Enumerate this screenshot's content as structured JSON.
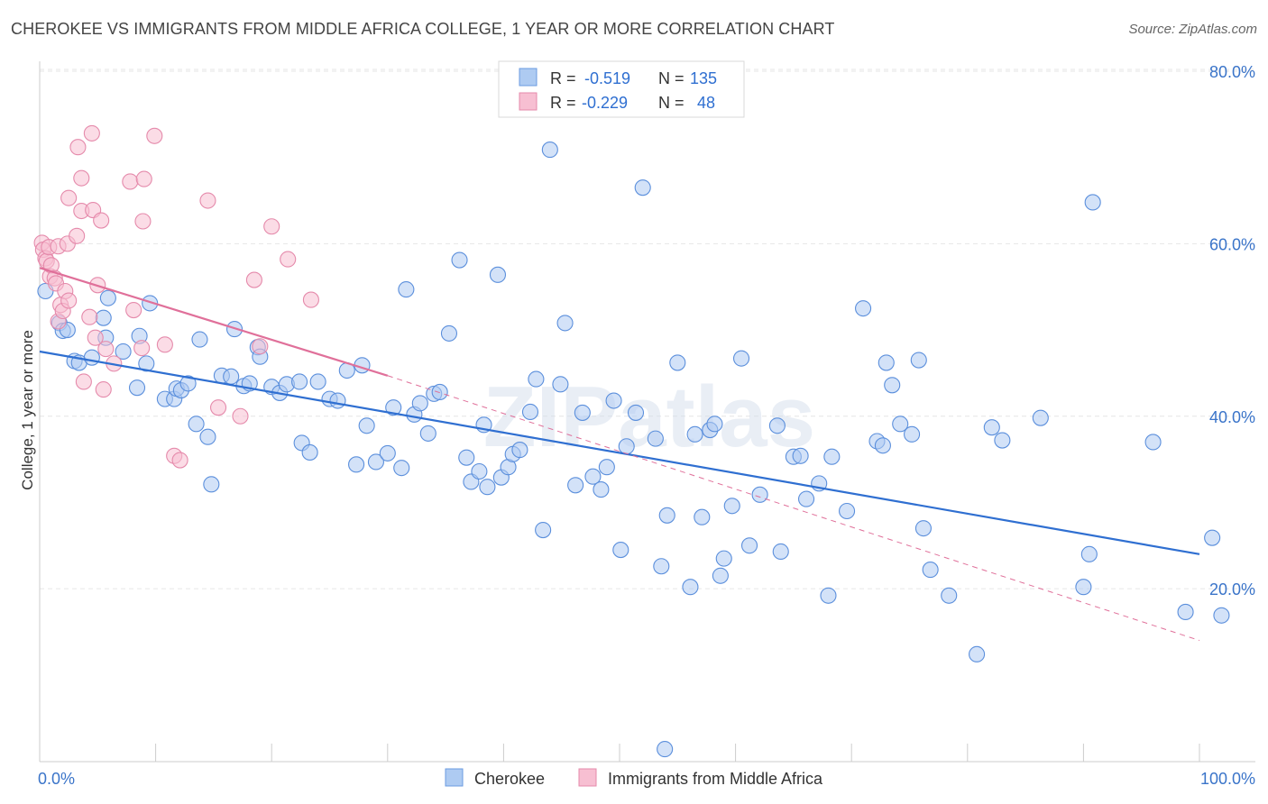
{
  "header": {
    "title": "CHEROKEE VS IMMIGRANTS FROM MIDDLE AFRICA COLLEGE, 1 YEAR OR MORE CORRELATION CHART",
    "source": "Source: ZipAtlas.com"
  },
  "watermark": "ZIPatlas",
  "colors": {
    "blue": "#2f6fd1",
    "blue_fill": "#aecbf2",
    "pink": "#e0709a",
    "pink_fill": "#f7bfd2",
    "axis_text": "#3a74c9",
    "grid": "#e6e6e6"
  },
  "legend_top": [
    {
      "r_label": "R =",
      "r_value": "-0.519",
      "n_label": "N =",
      "n_value": "135"
    },
    {
      "r_label": "R =",
      "r_value": "-0.229",
      "n_label": "N =",
      "n_value": "48"
    }
  ],
  "chart_data": {
    "type": "scatter",
    "title": "CHEROKEE VS IMMIGRANTS FROM MIDDLE AFRICA COLLEGE, 1 YEAR OR MORE CORRELATION CHART",
    "xlabel": "",
    "ylabel": "College, 1 year or more",
    "xlim": [
      0,
      100
    ],
    "ylim": [
      0,
      85
    ],
    "x_tick_labels": [
      "0.0%",
      "100.0%"
    ],
    "y_ticks": [
      20,
      40,
      60,
      80
    ],
    "y_tick_labels": [
      "20.0%",
      "40.0%",
      "60.0%",
      "80.0%"
    ],
    "grid": true,
    "legend_position": "bottom-center",
    "series": [
      {
        "name": "Cherokee",
        "color": "#2f6fd1",
        "trend": {
          "x": [
            0,
            100
          ],
          "y": [
            47.5,
            24
          ]
        },
        "points": [
          [
            0.5,
            54.5
          ],
          [
            1.7,
            50.8
          ],
          [
            2.0,
            49.9
          ],
          [
            2.4,
            50.0
          ],
          [
            3.0,
            46.4
          ],
          [
            3.4,
            46.2
          ],
          [
            4.5,
            46.8
          ],
          [
            5.7,
            49.1
          ],
          [
            5.5,
            51.4
          ],
          [
            5.9,
            53.7
          ],
          [
            7.2,
            47.5
          ],
          [
            8.6,
            49.3
          ],
          [
            8.4,
            43.3
          ],
          [
            9.2,
            46.1
          ],
          [
            9.5,
            53.1
          ],
          [
            10.8,
            42.0
          ],
          [
            11.6,
            42.0
          ],
          [
            11.8,
            43.2
          ],
          [
            12.2,
            43.0
          ],
          [
            12.8,
            43.8
          ],
          [
            13.8,
            48.9
          ],
          [
            13.5,
            39.1
          ],
          [
            14.5,
            37.6
          ],
          [
            14.8,
            32.1
          ],
          [
            15.7,
            44.7
          ],
          [
            16.5,
            44.6
          ],
          [
            16.8,
            50.1
          ],
          [
            17.6,
            43.5
          ],
          [
            18.1,
            43.8
          ],
          [
            18.8,
            48.0
          ],
          [
            19.0,
            46.9
          ],
          [
            20.0,
            43.4
          ],
          [
            20.7,
            42.7
          ],
          [
            21.3,
            43.7
          ],
          [
            22.4,
            44.0
          ],
          [
            22.6,
            36.9
          ],
          [
            23.3,
            35.8
          ],
          [
            24.0,
            44.0
          ],
          [
            25.0,
            42.0
          ],
          [
            25.7,
            41.8
          ],
          [
            26.5,
            45.3
          ],
          [
            27.3,
            34.4
          ],
          [
            27.8,
            45.9
          ],
          [
            28.2,
            38.9
          ],
          [
            29.0,
            34.7
          ],
          [
            30.0,
            35.7
          ],
          [
            30.5,
            41.0
          ],
          [
            31.2,
            34.0
          ],
          [
            31.6,
            54.7
          ],
          [
            32.3,
            40.2
          ],
          [
            32.8,
            41.5
          ],
          [
            33.5,
            38.0
          ],
          [
            34.0,
            42.6
          ],
          [
            34.5,
            42.8
          ],
          [
            35.3,
            49.6
          ],
          [
            36.2,
            58.1
          ],
          [
            36.8,
            35.2
          ],
          [
            37.2,
            32.4
          ],
          [
            37.9,
            33.6
          ],
          [
            38.3,
            39.0
          ],
          [
            38.6,
            31.8
          ],
          [
            39.5,
            56.4
          ],
          [
            39.8,
            32.9
          ],
          [
            40.4,
            34.1
          ],
          [
            40.8,
            35.6
          ],
          [
            41.4,
            36.1
          ],
          [
            42.3,
            40.5
          ],
          [
            42.8,
            44.3
          ],
          [
            43.4,
            26.8
          ],
          [
            44.0,
            70.9
          ],
          [
            44.9,
            43.7
          ],
          [
            45.3,
            50.8
          ],
          [
            46.2,
            32.0
          ],
          [
            46.8,
            40.4
          ],
          [
            47.7,
            33.0
          ],
          [
            48.4,
            31.5
          ],
          [
            48.9,
            34.1
          ],
          [
            49.5,
            41.8
          ],
          [
            50.1,
            24.5
          ],
          [
            50.6,
            36.5
          ],
          [
            51.4,
            40.4
          ],
          [
            52.0,
            66.5
          ],
          [
            53.1,
            37.4
          ],
          [
            53.6,
            22.6
          ],
          [
            54.1,
            28.5
          ],
          [
            55.0,
            46.2
          ],
          [
            56.1,
            20.2
          ],
          [
            56.5,
            37.9
          ],
          [
            57.1,
            28.3
          ],
          [
            57.8,
            38.4
          ],
          [
            58.2,
            39.1
          ],
          [
            58.7,
            21.5
          ],
          [
            59.0,
            23.5
          ],
          [
            59.7,
            29.6
          ],
          [
            60.5,
            46.7
          ],
          [
            61.2,
            25.0
          ],
          [
            62.1,
            30.9
          ],
          [
            63.6,
            38.9
          ],
          [
            63.9,
            24.3
          ],
          [
            65.0,
            35.3
          ],
          [
            65.6,
            35.4
          ],
          [
            66.1,
            30.4
          ],
          [
            67.2,
            32.2
          ],
          [
            68.0,
            19.2
          ],
          [
            68.3,
            35.3
          ],
          [
            69.6,
            29.0
          ],
          [
            71.0,
            52.5
          ],
          [
            72.2,
            37.1
          ],
          [
            72.7,
            36.6
          ],
          [
            73.0,
            46.2
          ],
          [
            73.5,
            43.6
          ],
          [
            74.2,
            39.1
          ],
          [
            75.2,
            37.9
          ],
          [
            75.8,
            46.5
          ],
          [
            76.2,
            27.0
          ],
          [
            76.8,
            22.2
          ],
          [
            78.4,
            19.2
          ],
          [
            80.8,
            12.4
          ],
          [
            82.1,
            38.7
          ],
          [
            83.0,
            37.2
          ],
          [
            86.3,
            39.8
          ],
          [
            90.0,
            20.2
          ],
          [
            90.5,
            24.0
          ],
          [
            90.8,
            64.8
          ],
          [
            96.0,
            37.0
          ],
          [
            98.8,
            17.3
          ],
          [
            101.1,
            25.9
          ],
          [
            101.9,
            16.9
          ],
          [
            53.9,
            1.4
          ]
        ]
      },
      {
        "name": "Immigrants from Middle Africa",
        "color": "#e0709a",
        "trend": {
          "x": [
            0,
            30
          ],
          "y": [
            57.2,
            44.7
          ]
        },
        "trend_dashed": {
          "x": [
            30,
            100
          ],
          "y": [
            44.7,
            14.0
          ]
        },
        "points": [
          [
            0.2,
            60.1
          ],
          [
            0.3,
            59.3
          ],
          [
            0.5,
            58.3
          ],
          [
            0.6,
            58.0
          ],
          [
            0.8,
            59.6
          ],
          [
            0.9,
            56.2
          ],
          [
            1.0,
            57.5
          ],
          [
            1.3,
            56.0
          ],
          [
            1.4,
            55.4
          ],
          [
            1.6,
            59.7
          ],
          [
            1.6,
            51.0
          ],
          [
            1.8,
            52.9
          ],
          [
            2.0,
            52.2
          ],
          [
            2.2,
            54.5
          ],
          [
            2.4,
            60.0
          ],
          [
            2.5,
            53.4
          ],
          [
            2.5,
            65.3
          ],
          [
            3.2,
            60.9
          ],
          [
            3.3,
            71.2
          ],
          [
            3.6,
            67.6
          ],
          [
            3.6,
            63.8
          ],
          [
            3.8,
            44.0
          ],
          [
            4.3,
            51.5
          ],
          [
            4.5,
            72.8
          ],
          [
            4.6,
            63.9
          ],
          [
            4.8,
            49.1
          ],
          [
            5.0,
            55.2
          ],
          [
            5.3,
            62.7
          ],
          [
            5.5,
            43.1
          ],
          [
            5.7,
            47.8
          ],
          [
            6.4,
            46.1
          ],
          [
            7.8,
            67.2
          ],
          [
            8.1,
            52.3
          ],
          [
            8.8,
            47.9
          ],
          [
            8.9,
            62.6
          ],
          [
            9.0,
            67.5
          ],
          [
            9.9,
            72.5
          ],
          [
            10.8,
            48.3
          ],
          [
            11.6,
            35.4
          ],
          [
            12.1,
            34.9
          ],
          [
            14.5,
            65.0
          ],
          [
            15.4,
            41.0
          ],
          [
            17.3,
            40.0
          ],
          [
            18.5,
            55.8
          ],
          [
            19.0,
            48.1
          ],
          [
            20.0,
            62.0
          ],
          [
            21.4,
            58.2
          ],
          [
            23.4,
            53.5
          ]
        ]
      }
    ]
  },
  "legend_bottom": [
    {
      "label": "Cherokee"
    },
    {
      "label": "Immigrants from Middle Africa"
    }
  ]
}
